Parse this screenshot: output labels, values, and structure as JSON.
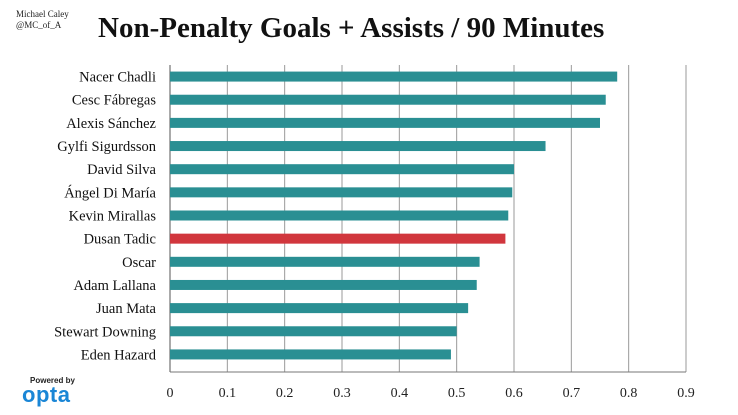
{
  "credit": {
    "author": "Michael Caley",
    "handle": "@MC_of_A"
  },
  "branding": {
    "powered_by": "Powered by",
    "logo_text": "opta",
    "logo_color": "#1a86d6"
  },
  "colors": {
    "bar_default": "#2a8f93",
    "bar_highlight": "#d1363d",
    "grid": "#9a9a9a"
  },
  "chart_data": {
    "type": "bar",
    "orientation": "horizontal",
    "title": "Non-Penalty Goals + Assists / 90 Minutes",
    "xlabel": "",
    "ylabel": "",
    "xlim": [
      0,
      0.9
    ],
    "xticks": [
      "0",
      "0.1",
      "0.2",
      "0.3",
      "0.4",
      "0.5",
      "0.6",
      "0.7",
      "0.8",
      "0.9"
    ],
    "grid": true,
    "categories": [
      "Nacer Chadli",
      "Cesc Fábregas",
      "Alexis Sánchez",
      "Gylfi Sigurdsson",
      "David Silva",
      "Ángel Di María",
      "Kevin Mirallas",
      "Dusan Tadic",
      "Oscar",
      "Adam Lallana",
      "Juan Mata",
      "Stewart Downing",
      "Eden Hazard"
    ],
    "values": [
      0.78,
      0.76,
      0.75,
      0.655,
      0.6,
      0.597,
      0.59,
      0.585,
      0.54,
      0.535,
      0.52,
      0.5,
      0.49
    ],
    "highlight": "Dusan Tadic"
  }
}
